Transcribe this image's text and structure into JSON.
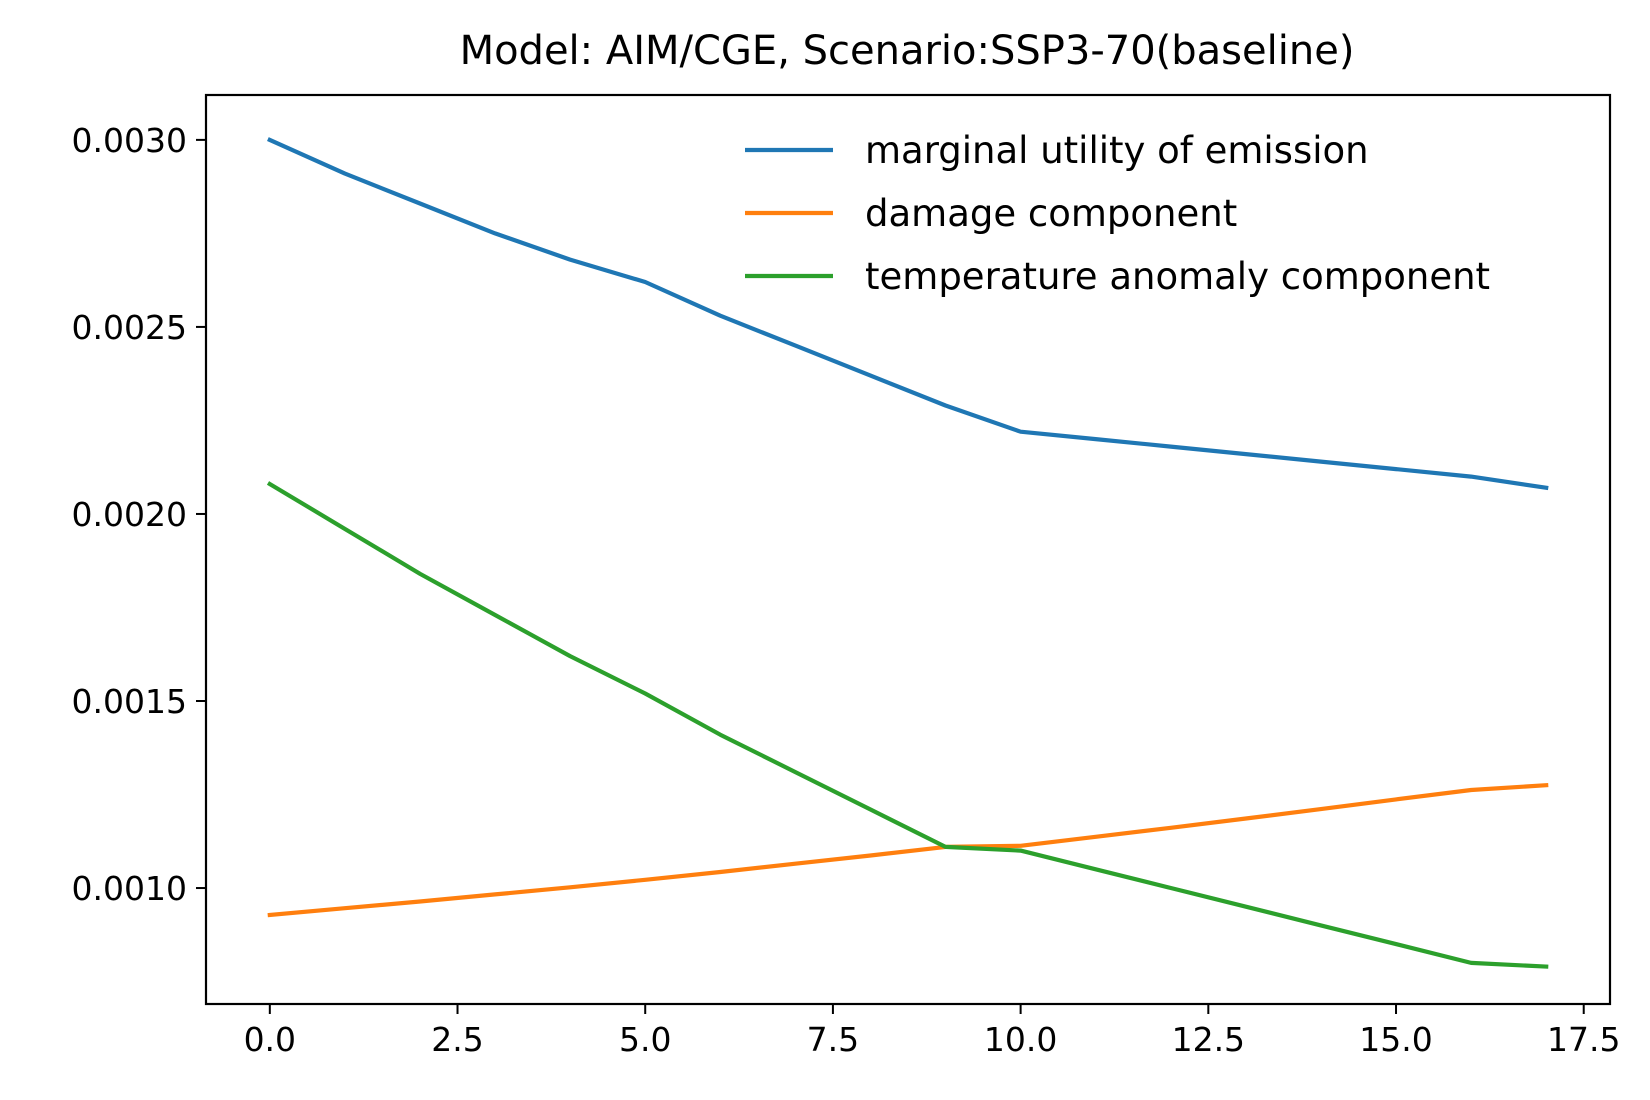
{
  "chart_data": {
    "type": "line",
    "title": "Model: AIM/CGE, Scenario:SSP3-70(baseline)",
    "xlabel": "",
    "ylabel": "",
    "xlim": [
      -0.85,
      17.85
    ],
    "ylim": [
      0.00069,
      0.00312
    ],
    "x_ticks": [
      0.0,
      2.5,
      5.0,
      7.5,
      10.0,
      12.5,
      15.0,
      17.5
    ],
    "x_tick_labels": [
      "0.0",
      "2.5",
      "5.0",
      "7.5",
      "10.0",
      "12.5",
      "15.0",
      "17.5"
    ],
    "y_ticks": [
      0.001,
      0.0015,
      0.002,
      0.0025,
      0.003
    ],
    "y_tick_labels": [
      "0.0010",
      "0.0015",
      "0.0020",
      "0.0025",
      "0.0030"
    ],
    "grid": false,
    "legend_position": "top-right",
    "series": [
      {
        "name": "marginal utility of emission",
        "color": "#1f77b4",
        "x": [
          0,
          1,
          2,
          3,
          4,
          5,
          6,
          7,
          8,
          9,
          10,
          11,
          12,
          13,
          14,
          15,
          16,
          17
        ],
        "y": [
          0.003,
          0.00291,
          0.00283,
          0.00275,
          0.00268,
          0.00262,
          0.00253,
          0.00245,
          0.00237,
          0.00229,
          0.00222,
          0.0022,
          0.00218,
          0.00216,
          0.00214,
          0.00212,
          0.0021,
          0.00207
        ]
      },
      {
        "name": "damage component",
        "color": "#ff7f0e",
        "x": [
          0,
          1,
          2,
          3,
          4,
          5,
          6,
          7,
          8,
          9,
          10,
          11,
          12,
          13,
          14,
          15,
          16,
          17
        ],
        "y": [
          0.000928,
          0.000946,
          0.000964,
          0.000983,
          0.001002,
          0.001022,
          0.001043,
          0.001065,
          0.001087,
          0.00111,
          0.001113,
          0.001137,
          0.001161,
          0.001186,
          0.001211,
          0.001237,
          0.001262,
          0.001275
        ]
      },
      {
        "name": "temperature anomaly component",
        "color": "#2ca02c",
        "x": [
          0,
          1,
          2,
          3,
          4,
          5,
          6,
          7,
          8,
          9,
          10,
          11,
          12,
          13,
          14,
          15,
          16,
          17
        ],
        "y": [
          0.00208,
          0.00196,
          0.00184,
          0.00173,
          0.00162,
          0.00152,
          0.00141,
          0.00131,
          0.00121,
          0.00111,
          0.0011,
          0.00105,
          0.001,
          0.00095,
          0.0009,
          0.00085,
          0.0008,
          0.00079
        ]
      }
    ]
  }
}
